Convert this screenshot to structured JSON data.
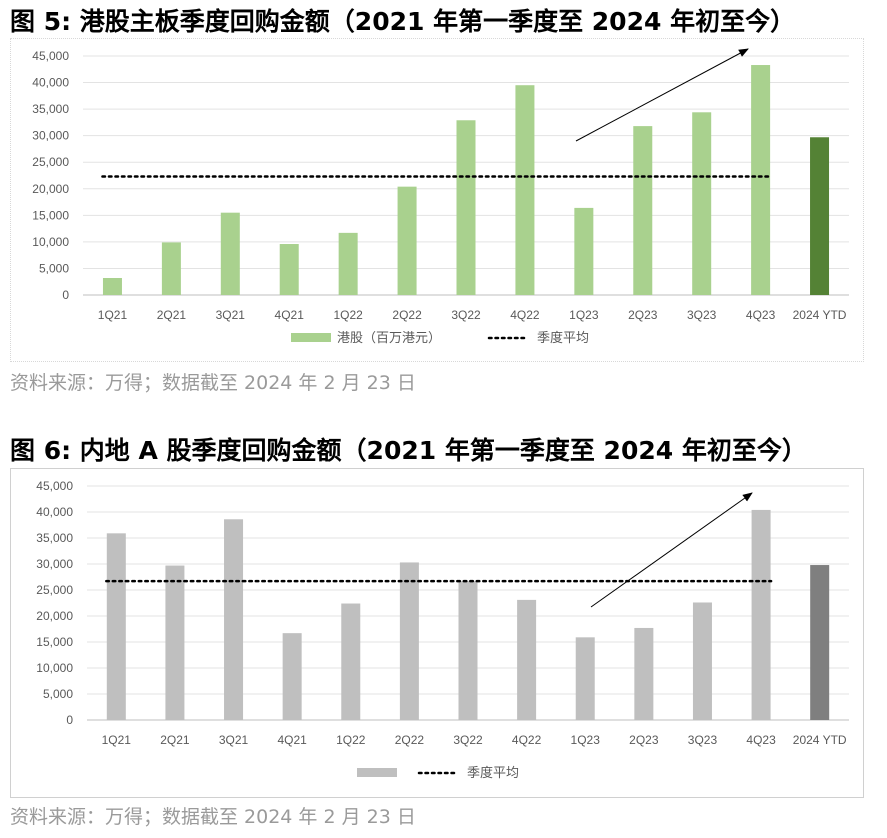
{
  "figures": [
    {
      "title": "图 5:  港股主板季度回购金额（2021 年第一季度至 2024 年初至今）",
      "source": "资料来源：万得；数据截至  2024 年 2 月 23 日"
    },
    {
      "title": "图 6:  内地 A 股季度回购金额（2021 年第一季度至 2024 年初至今）",
      "source": "资料来源：万得；数据截至  2024 年 2 月 23 日"
    }
  ],
  "chart_data": [
    {
      "type": "bar",
      "categories": [
        "1Q21",
        "2Q21",
        "3Q21",
        "4Q21",
        "1Q22",
        "2Q22",
        "3Q22",
        "4Q22",
        "1Q23",
        "2Q23",
        "3Q23",
        "4Q23",
        "2024 YTD"
      ],
      "series": [
        {
          "name": "港股（百万港元）",
          "values": [
            3200,
            9900,
            15500,
            9600,
            11700,
            20400,
            32900,
            39500,
            16400,
            31800,
            34400,
            43300,
            29700
          ]
        }
      ],
      "average": {
        "name": "季度平均",
        "value": 22300
      },
      "ylim": [
        0,
        45000
      ],
      "yticks": [
        "0",
        "5,000",
        "10,000",
        "15,000",
        "20,000",
        "25,000",
        "30,000",
        "35,000",
        "40,000",
        "45,000"
      ],
      "colors": {
        "bar": "#a9d18e",
        "highlight": "#548235",
        "average": "#000000"
      },
      "legend": "bottom-center",
      "grid": true,
      "trend_arrow": true
    },
    {
      "type": "bar",
      "categories": [
        "1Q21",
        "2Q21",
        "3Q21",
        "4Q21",
        "1Q22",
        "2Q22",
        "3Q22",
        "4Q22",
        "1Q23",
        "2Q23",
        "3Q23",
        "4Q23",
        "2024 YTD"
      ],
      "series": [
        {
          "name": "",
          "values": [
            35900,
            29700,
            38600,
            16700,
            22400,
            30300,
            26700,
            23100,
            15900,
            17700,
            22600,
            40400,
            29800
          ]
        }
      ],
      "average": {
        "name": "季度平均",
        "value": 26700
      },
      "ylim": [
        0,
        45000
      ],
      "yticks": [
        "0",
        "5,000",
        "10,000",
        "15,000",
        "20,000",
        "25,000",
        "30,000",
        "35,000",
        "40,000",
        "45,000"
      ],
      "colors": {
        "bar": "#bfbfbf",
        "highlight": "#7f7f7f",
        "average": "#000000"
      },
      "legend": "bottom-center",
      "grid": true,
      "trend_arrow": true
    }
  ]
}
